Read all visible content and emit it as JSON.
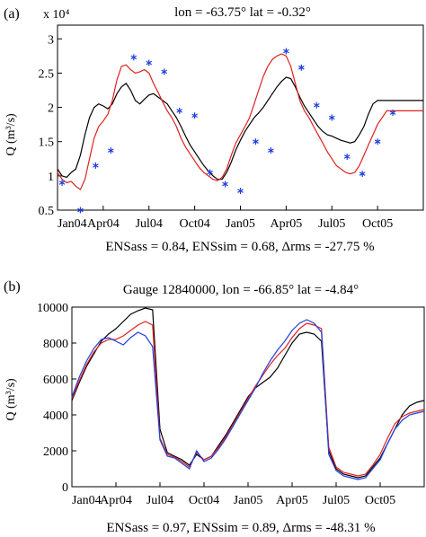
{
  "chart_data": [
    {
      "type": "line",
      "panel_label": "(a)",
      "title": "lon = -63.75° lat = -0.32°",
      "ylabel": "Q (m³/s)",
      "y_multiplier": "x 10⁴",
      "xlabel": "",
      "footer": "ENSass = 0.84, ENSsim = 0.68, Δrms = -27.75 %",
      "x_ticks": [
        "Jan04",
        "Apr04",
        "Jul04",
        "Oct04",
        "Jan05",
        "Apr05",
        "Jul05",
        "Oct05"
      ],
      "y_ticks": [
        "0.5",
        "1",
        "1.5",
        "2",
        "2.5",
        "3"
      ],
      "ylim": [
        0.5,
        3.2
      ],
      "grid": false,
      "series": [
        {
          "color": "#000000",
          "style": "line",
          "x": [
            0,
            0.3,
            0.6,
            0.9,
            1.2,
            1.5,
            1.8,
            2.1,
            2.4,
            2.7,
            3,
            3.3,
            3.6,
            3.9,
            4.2,
            4.5,
            4.8,
            5.1,
            5.4,
            5.7,
            6,
            6.3,
            6.6,
            6.9,
            7.2,
            7.5,
            7.8,
            8.1,
            8.4,
            8.7,
            9,
            9.3,
            9.6,
            9.9,
            10.2,
            10.5,
            10.8,
            11.1,
            11.4,
            11.7,
            12,
            12.3,
            12.6,
            12.9,
            13.2,
            13.5,
            13.8,
            14.1,
            14.4,
            14.7,
            15,
            15.3,
            15.6,
            15.9,
            16.2,
            16.5,
            16.8,
            17.1,
            17.4,
            17.7,
            18,
            18.3,
            18.6,
            18.9,
            19.2,
            19.5,
            19.8,
            20.1,
            20.4,
            20.7,
            21,
            21.3,
            21.6,
            21.9,
            22.2,
            22.5,
            22.8,
            23.1,
            23.4,
            23.7,
            24
          ],
          "y": [
            1.1,
            1,
            0.98,
            1.05,
            1.1,
            1.3,
            1.6,
            1.85,
            2,
            2.05,
            2.02,
            1.98,
            2.05,
            2.2,
            2.3,
            2.35,
            2.25,
            2.1,
            2.05,
            2.12,
            2.18,
            2.2,
            2.15,
            2.1,
            2.05,
            1.95,
            1.85,
            1.72,
            1.58,
            1.45,
            1.35,
            1.25,
            1.15,
            1.07,
            1,
            0.95,
            0.95,
            1.05,
            1.2,
            1.38,
            1.52,
            1.65,
            1.75,
            1.85,
            1.92,
            2,
            2.1,
            2.2,
            2.3,
            2.38,
            2.44,
            2.42,
            2.3,
            2.15,
            2.02,
            1.92,
            1.82,
            1.72,
            1.65,
            1.6,
            1.58,
            1.55,
            1.52,
            1.5,
            1.48,
            1.5,
            1.6,
            1.72,
            1.9,
            2.05,
            2.1,
            2.1,
            2.1,
            2.1,
            2.1,
            2.1,
            2.1,
            2.1,
            2.1,
            2.1,
            2.1
          ]
        },
        {
          "color": "#e02020",
          "style": "line",
          "x": [
            0,
            0.3,
            0.6,
            0.9,
            1.2,
            1.5,
            1.8,
            2.1,
            2.4,
            2.7,
            3,
            3.3,
            3.6,
            3.9,
            4.2,
            4.5,
            4.8,
            5.1,
            5.4,
            5.7,
            6,
            6.3,
            6.6,
            6.9,
            7.2,
            7.5,
            7.8,
            8.1,
            8.4,
            8.7,
            9,
            9.3,
            9.6,
            9.9,
            10.2,
            10.5,
            10.8,
            11.1,
            11.4,
            11.7,
            12,
            12.3,
            12.6,
            12.9,
            13.2,
            13.5,
            13.8,
            14.1,
            14.4,
            14.7,
            15,
            15.3,
            15.6,
            15.9,
            16.2,
            16.5,
            16.8,
            17.1,
            17.4,
            17.7,
            18,
            18.3,
            18.6,
            18.9,
            19.2,
            19.5,
            19.8,
            20.1,
            20.4,
            20.7,
            21,
            21.3,
            21.6,
            21.9,
            22.2,
            22.5,
            22.8,
            23.1,
            23.4,
            23.7,
            24
          ],
          "y": [
            1.05,
            0.95,
            0.9,
            0.92,
            0.85,
            0.8,
            0.95,
            1.25,
            1.55,
            1.72,
            1.8,
            1.9,
            2.1,
            2.4,
            2.6,
            2.62,
            2.55,
            2.5,
            2.52,
            2.55,
            2.5,
            2.35,
            2.22,
            2.08,
            1.95,
            1.85,
            1.72,
            1.55,
            1.42,
            1.32,
            1.22,
            1.12,
            1.05,
            1,
            0.95,
            0.93,
            0.98,
            1.1,
            1.3,
            1.48,
            1.6,
            1.72,
            1.85,
            2.05,
            2.25,
            2.45,
            2.6,
            2.7,
            2.75,
            2.78,
            2.75,
            2.6,
            2.35,
            2.1,
            1.95,
            1.85,
            1.72,
            1.6,
            1.48,
            1.35,
            1.25,
            1.15,
            1.1,
            1.05,
            1.03,
            1.05,
            1.15,
            1.3,
            1.45,
            1.6,
            1.75,
            1.85,
            1.95,
            1.95,
            1.95,
            1.95,
            1.95,
            1.95,
            1.95,
            1.95,
            1.95
          ]
        },
        {
          "color": "#1f3fe0",
          "style": "markers",
          "marker": "asterisk",
          "x": [
            0.3,
            1.5,
            2.5,
            3.5,
            5,
            6,
            7,
            8,
            9,
            10,
            11,
            12,
            13,
            14,
            15,
            16,
            17,
            18,
            19,
            20,
            21,
            22
          ],
          "y": [
            0.9,
            0.5,
            1.15,
            1.37,
            2.73,
            2.65,
            2.52,
            1.95,
            1.88,
            1.05,
            0.88,
            0.78,
            1.5,
            1.37,
            2.82,
            2.58,
            2.03,
            1.85,
            1.28,
            1.03,
            1.5,
            1.92
          ]
        }
      ]
    },
    {
      "type": "line",
      "panel_label": "(b)",
      "title": "Gauge 12840000, lon = -66.85° lat = -4.84°",
      "ylabel": "Q (m³/s)",
      "xlabel": "",
      "footer": "ENSass = 0.97, ENSsim = 0.89, Δrms = -48.31 %",
      "x_ticks": [
        "Jan04",
        "Apr04",
        "Jul04",
        "Oct04",
        "Jan05",
        "Apr05",
        "Jul05",
        "Oct05"
      ],
      "y_ticks": [
        "0",
        "2000",
        "4000",
        "6000",
        "8000",
        "10000"
      ],
      "ylim": [
        0,
        10000
      ],
      "grid": false,
      "series": [
        {
          "color": "#000000",
          "style": "line",
          "x": [
            0,
            0.5,
            1,
            1.5,
            2,
            2.5,
            3,
            3.5,
            4,
            4.5,
            5,
            5.5,
            6,
            6.5,
            7,
            7.5,
            8,
            8.5,
            9,
            9.5,
            10,
            10.5,
            11,
            11.5,
            12,
            12.5,
            13,
            13.5,
            14,
            14.5,
            15,
            15.5,
            16,
            16.5,
            17,
            17.5,
            18,
            18.5,
            19,
            19.5,
            20,
            20.5,
            21,
            21.5,
            22,
            22.5,
            23,
            23.5,
            24
          ],
          "y": [
            4800,
            5800,
            6700,
            7400,
            8100,
            8500,
            8800,
            9200,
            9600,
            9800,
            9950,
            9850,
            3200,
            1900,
            1700,
            1500,
            1200,
            1800,
            1500,
            1700,
            2300,
            2900,
            3600,
            4300,
            5000,
            5500,
            5800,
            6100,
            6600,
            7300,
            8000,
            8500,
            8600,
            8500,
            8100,
            2000,
            1000,
            700,
            600,
            500,
            600,
            1100,
            1600,
            2400,
            3200,
            4000,
            4500,
            4700,
            4800
          ]
        },
        {
          "color": "#e02020",
          "style": "line",
          "x": [
            0,
            0.5,
            1,
            1.5,
            2,
            2.5,
            3,
            3.5,
            4,
            4.5,
            5,
            5.5,
            6,
            6.5,
            7,
            7.5,
            8,
            8.5,
            9,
            9.5,
            10,
            10.5,
            11,
            11.5,
            12,
            12.5,
            13,
            13.5,
            14,
            14.5,
            15,
            15.5,
            16,
            16.5,
            17,
            17.5,
            18,
            18.5,
            19,
            19.5,
            20,
            20.5,
            21,
            21.5,
            22,
            22.5,
            23,
            23.5,
            24
          ],
          "y": [
            4900,
            5900,
            6800,
            7500,
            8000,
            8200,
            8200,
            8400,
            8700,
            9000,
            9200,
            9000,
            2700,
            1800,
            1650,
            1400,
            1100,
            1900,
            1500,
            1700,
            2200,
            2800,
            3500,
            4200,
            4900,
            5600,
            6200,
            6800,
            7300,
            7700,
            8300,
            8800,
            9100,
            9000,
            8800,
            2200,
            1100,
            800,
            700,
            600,
            700,
            1200,
            1800,
            2700,
            3500,
            3900,
            4100,
            4200,
            4300
          ]
        },
        {
          "color": "#1f3fe0",
          "style": "line",
          "x": [
            0,
            0.5,
            1,
            1.5,
            2,
            2.5,
            3,
            3.5,
            4,
            4.5,
            5,
            5.5,
            6,
            6.5,
            7,
            7.5,
            8,
            8.5,
            9,
            9.5,
            10,
            10.5,
            11,
            11.5,
            12,
            12.5,
            13,
            13.5,
            14,
            14.5,
            15,
            15.5,
            16,
            16.5,
            17,
            17.5,
            18,
            18.5,
            19,
            19.5,
            20,
            20.5,
            21,
            21.5,
            22,
            22.5,
            23,
            23.5,
            24
          ],
          "y": [
            5000,
            6100,
            7000,
            7700,
            8200,
            8300,
            8100,
            7900,
            8300,
            8600,
            8400,
            7800,
            2600,
            1700,
            1600,
            1300,
            1000,
            2000,
            1400,
            1600,
            2100,
            2700,
            3400,
            4100,
            4800,
            5500,
            6300,
            7000,
            7600,
            8100,
            8700,
            9100,
            9300,
            9100,
            8600,
            1800,
            900,
            600,
            500,
            400,
            500,
            1000,
            1500,
            2400,
            3200,
            3700,
            4000,
            4100,
            4200
          ]
        }
      ]
    }
  ]
}
